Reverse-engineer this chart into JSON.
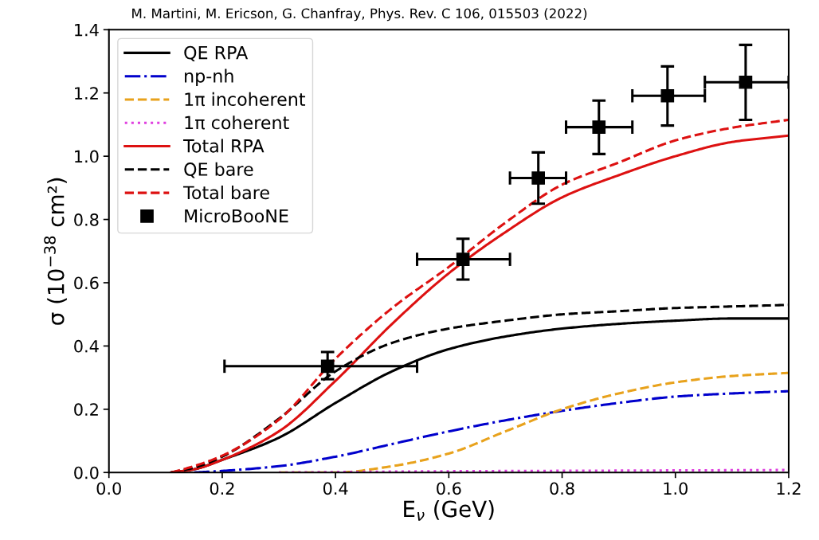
{
  "chart_data": {
    "type": "line",
    "xlabel": "E$_{ν}$ (GeV)",
    "ylabel": "σ (10$^{−38}$ cm²)",
    "annotations": [
      "M. Martini, M. Ericson, G. Chanfray, Phys. Rev. C 106, 015503 (2022)"
    ],
    "xlim": [
      0.0,
      1.2
    ],
    "xticks": [
      {
        "value": 0.0,
        "label": "0.0"
      },
      0.2,
      0.4,
      0.6,
      0.8,
      {
        "value": 1.0,
        "label": "1.0"
      },
      1.2
    ],
    "ylim": [
      0.0,
      1.4
    ],
    "yticks": [
      {
        "value": 0.0,
        "label": "0.0"
      },
      0.2,
      0.4,
      0.6,
      0.8,
      {
        "value": 1.0,
        "label": "1.0"
      },
      1.2,
      1.4
    ],
    "grid": false,
    "legend": "top left",
    "marker": "none",
    "series": [
      {
        "name": "QE RPA",
        "color": "#000000",
        "line_style": "solid",
        "x": [
          0.11,
          0.15,
          0.2,
          0.3,
          0.4,
          0.5,
          0.6,
          0.7,
          0.8,
          0.9,
          1.0,
          1.1,
          1.2
        ],
        "values": [
          0.0,
          0.01,
          0.04,
          0.11,
          0.22,
          0.32,
          0.39,
          0.43,
          0.455,
          0.47,
          0.48,
          0.487,
          0.487
        ]
      },
      {
        "name": "np-nh",
        "color": "#0000cc",
        "line_style": "dashdot",
        "x": [
          0.15,
          0.2,
          0.3,
          0.4,
          0.5,
          0.6,
          0.7,
          0.8,
          0.9,
          1.0,
          1.1,
          1.2
        ],
        "values": [
          0.0,
          0.005,
          0.02,
          0.05,
          0.09,
          0.13,
          0.165,
          0.195,
          0.22,
          0.24,
          0.25,
          0.257
        ]
      },
      {
        "name": "1π incoherent",
        "color": "#e8a21c",
        "line_style": "dashed",
        "x": [
          0.3,
          0.4,
          0.5,
          0.6,
          0.7,
          0.8,
          0.9,
          1.0,
          1.1,
          1.2
        ],
        "values": [
          0.0,
          0.0,
          0.02,
          0.06,
          0.13,
          0.2,
          0.25,
          0.285,
          0.305,
          0.315
        ]
      },
      {
        "name": "1π coherent",
        "color": "#e040e0",
        "line_style": "dotted",
        "x": [
          0.3,
          0.6,
          0.9,
          1.2
        ],
        "values": [
          0.0,
          0.004,
          0.006,
          0.008
        ]
      },
      {
        "name": "Total RPA",
        "color": "#dd1111",
        "line_style": "solid",
        "x": [
          0.11,
          0.15,
          0.2,
          0.3,
          0.4,
          0.5,
          0.6,
          0.7,
          0.8,
          0.9,
          1.0,
          1.1,
          1.2
        ],
        "values": [
          0.0,
          0.01,
          0.04,
          0.13,
          0.29,
          0.47,
          0.63,
          0.76,
          0.87,
          0.94,
          1.0,
          1.045,
          1.065
        ]
      },
      {
        "name": "QE bare",
        "color": "#000000",
        "line_style": "dashed",
        "x": [
          0.11,
          0.15,
          0.2,
          0.3,
          0.4,
          0.5,
          0.6,
          0.7,
          0.8,
          0.9,
          1.0,
          1.1,
          1.2
        ],
        "values": [
          0.0,
          0.015,
          0.05,
          0.17,
          0.32,
          0.41,
          0.455,
          0.48,
          0.5,
          0.51,
          0.52,
          0.525,
          0.53
        ]
      },
      {
        "name": "Total bare",
        "color": "#dd1111",
        "line_style": "dashed",
        "x": [
          0.11,
          0.15,
          0.2,
          0.3,
          0.4,
          0.5,
          0.6,
          0.7,
          0.8,
          0.9,
          1.0,
          1.1,
          1.2
        ],
        "values": [
          0.0,
          0.02,
          0.053,
          0.167,
          0.36,
          0.52,
          0.65,
          0.79,
          0.91,
          0.98,
          1.05,
          1.09,
          1.115
        ]
      },
      {
        "name": "MicroBooNE",
        "type": "scatter",
        "color": "#000000",
        "marker": "square",
        "x": [
          0.386,
          0.625,
          0.758,
          0.865,
          0.986,
          1.124
        ],
        "values": [
          0.336,
          0.674,
          0.931,
          1.092,
          1.191,
          1.234
        ],
        "errors": [
          [
            0.295,
            0.381
          ],
          [
            0.61,
            0.739
          ],
          [
            0.85,
            1.012
          ],
          [
            1.007,
            1.176
          ],
          [
            1.097,
            1.284
          ],
          [
            1.115,
            1.352
          ]
        ],
        "xerrors": [
          [
            0.204,
            0.544
          ],
          [
            0.544,
            0.708
          ],
          [
            0.708,
            0.807
          ],
          [
            0.807,
            0.924
          ],
          [
            0.924,
            1.052
          ],
          [
            1.052,
            1.2
          ]
        ]
      }
    ]
  }
}
